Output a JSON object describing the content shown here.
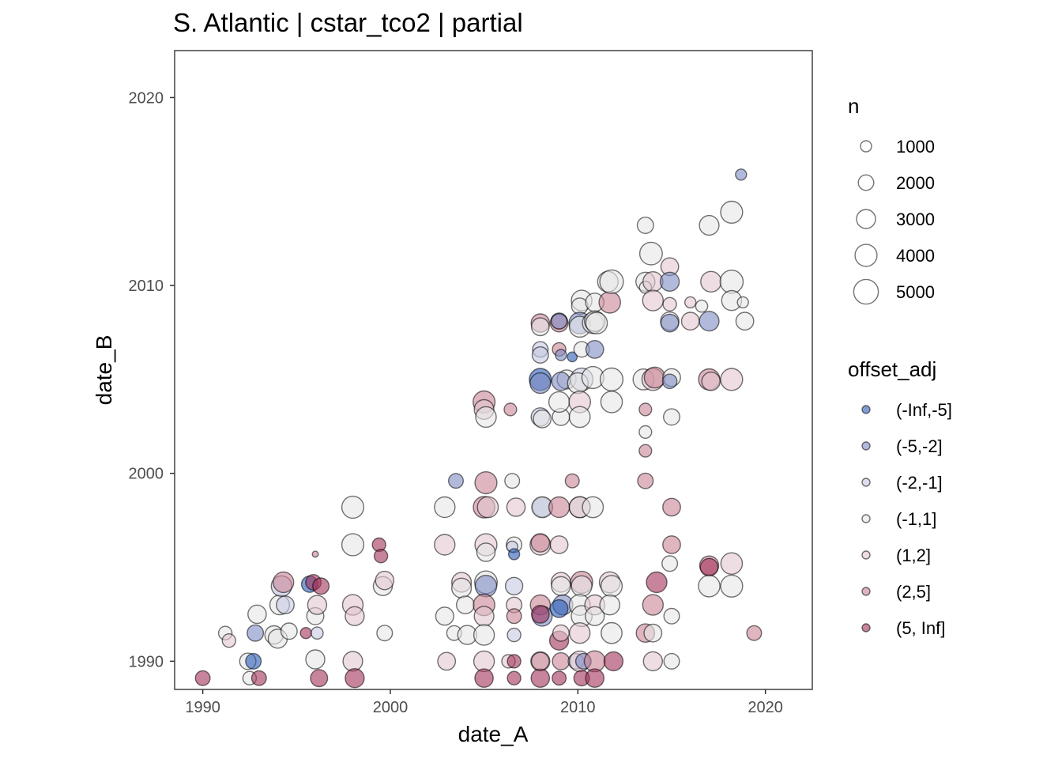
{
  "chart_data": {
    "type": "scatter",
    "title": "S. Atlantic | cstar_tco2 | partial",
    "xlabel": "date_A",
    "ylabel": "date_B",
    "xlim": [
      1988.5,
      2022.5
    ],
    "ylim": [
      1988.5,
      2022.5
    ],
    "x_ticks": [
      1990,
      2000,
      2010,
      2020
    ],
    "y_ticks": [
      1990,
      2000,
      2010,
      2020
    ],
    "size_legend": {
      "title": "n",
      "values": [
        1000,
        2000,
        3000,
        4000,
        5000
      ]
    },
    "color_legend": {
      "title": "offset_adj",
      "categories": [
        "(-Inf,-5]",
        "(-5,-2]",
        "(-2,-1]",
        "(-1,1]",
        "(1,2]",
        "(2,5]",
        "(5, Inf]"
      ],
      "colors": [
        "#2B5BB5",
        "#7F8CC5",
        "#C6C9E3",
        "#E6E6E6",
        "#E3C6CF",
        "#C98496",
        "#A2325A"
      ]
    },
    "points": [
      [
        1990.0,
        1989.1,
        1800,
        6
      ],
      [
        1991.2,
        1991.5,
        1500,
        3
      ],
      [
        1991.4,
        1991.1,
        1500,
        4
      ],
      [
        1992.4,
        1990.0,
        2200,
        3
      ],
      [
        1992.5,
        1989.1,
        1500,
        3
      ],
      [
        1992.7,
        1990.0,
        2000,
        0
      ],
      [
        1992.8,
        1991.5,
        2200,
        1
      ],
      [
        1992.9,
        1992.5,
        2800,
        3
      ],
      [
        1993.0,
        1989.1,
        1800,
        6
      ],
      [
        1993.8,
        1991.4,
        2800,
        3
      ],
      [
        1994.0,
        1991.2,
        3000,
        3
      ],
      [
        1994.1,
        1993.0,
        3200,
        3
      ],
      [
        1994.2,
        1994.0,
        3500,
        2
      ],
      [
        1994.3,
        1994.2,
        3500,
        5
      ],
      [
        1994.4,
        1993.0,
        2600,
        2
      ],
      [
        1994.6,
        1991.6,
        2200,
        3
      ],
      [
        1995.5,
        1991.5,
        1000,
        6
      ],
      [
        1995.7,
        1994.1,
        2200,
        0
      ],
      [
        1995.9,
        1994.2,
        2000,
        6
      ],
      [
        1996.0,
        1992.4,
        2400,
        3
      ],
      [
        1996.0,
        1990.1,
        3000,
        3
      ],
      [
        1996.1,
        1993.0,
        3000,
        4
      ],
      [
        1996.0,
        1995.7,
        300,
        5
      ],
      [
        1996.1,
        1991.5,
        1200,
        2
      ],
      [
        1996.2,
        1989.1,
        2400,
        6
      ],
      [
        1996.3,
        1994.0,
        2200,
        6
      ],
      [
        1998.0,
        1998.2,
        4000,
        3
      ],
      [
        1998.0,
        1996.2,
        4000,
        3
      ],
      [
        1998.0,
        1990.0,
        3200,
        4
      ],
      [
        1998.1,
        1989.1,
        3000,
        6
      ],
      [
        1998.0,
        1993.0,
        3500,
        4
      ],
      [
        1998.1,
        1992.4,
        3000,
        4
      ],
      [
        1999.4,
        1996.2,
        1500,
        6
      ],
      [
        1999.5,
        1995.6,
        1500,
        6
      ],
      [
        1999.6,
        1994.0,
        3000,
        3
      ],
      [
        1999.7,
        1994.3,
        2800,
        4
      ],
      [
        1999.7,
        1991.5,
        2000,
        3
      ],
      [
        2002.9,
        1998.2,
        3500,
        3
      ],
      [
        2002.9,
        1996.2,
        3500,
        4
      ],
      [
        2002.9,
        1992.4,
        2700,
        3
      ],
      [
        2003.0,
        1990.0,
        2600,
        4
      ],
      [
        2003.4,
        1991.5,
        1800,
        3
      ],
      [
        2003.5,
        1999.6,
        1800,
        1
      ],
      [
        2003.8,
        1994.2,
        3200,
        4
      ],
      [
        2003.8,
        1993.9,
        3200,
        3
      ],
      [
        2004.0,
        1993.0,
        2600,
        3
      ],
      [
        2004.1,
        1991.4,
        3000,
        3
      ],
      [
        2005.0,
        2003.8,
        4000,
        5
      ],
      [
        2005.0,
        2003.4,
        3200,
        4
      ],
      [
        2005.1,
        2003.0,
        3500,
        3
      ],
      [
        2005.1,
        1999.5,
        4000,
        5
      ],
      [
        2005.0,
        1998.2,
        3800,
        5
      ],
      [
        2005.1,
        1996.2,
        4000,
        4
      ],
      [
        2005.1,
        1994.2,
        4200,
        3
      ],
      [
        2005.1,
        1994.0,
        3800,
        1
      ],
      [
        2005.0,
        1993.0,
        3800,
        5
      ],
      [
        2005.0,
        1992.4,
        3200,
        4
      ],
      [
        2005.0,
        1991.4,
        3500,
        3
      ],
      [
        2005.0,
        1990.0,
        3500,
        4
      ],
      [
        2005.0,
        1989.1,
        2800,
        6
      ],
      [
        2005.2,
        1998.2,
        3600,
        4
      ],
      [
        2005.1,
        1995.8,
        2800,
        3
      ],
      [
        2006.4,
        2003.4,
        1300,
        5
      ],
      [
        2006.5,
        1999.6,
        1800,
        3
      ],
      [
        2006.7,
        1998.2,
        2800,
        4
      ],
      [
        2006.6,
        1996.2,
        2000,
        3
      ],
      [
        2006.5,
        1996.1,
        1000,
        2
      ],
      [
        2006.6,
        1995.7,
        1000,
        0
      ],
      [
        2006.6,
        1994.0,
        2500,
        2
      ],
      [
        2006.6,
        1993.0,
        2000,
        4
      ],
      [
        2006.6,
        1992.4,
        1800,
        5
      ],
      [
        2006.6,
        1991.4,
        1500,
        2
      ],
      [
        2006.3,
        1990.0,
        1500,
        4
      ],
      [
        2006.6,
        1990.0,
        1500,
        6
      ],
      [
        2006.6,
        1989.1,
        1500,
        6
      ],
      [
        2008.0,
        2008.0,
        2800,
        5
      ],
      [
        2008.0,
        2007.8,
        2600,
        3
      ],
      [
        2008.0,
        2006.6,
        2000,
        2
      ],
      [
        2008.0,
        2006.3,
        2200,
        2
      ],
      [
        2008.0,
        2005.0,
        4000,
        0
      ],
      [
        2008.0,
        2004.8,
        3500,
        1
      ],
      [
        2008.0,
        2003.0,
        2800,
        2
      ],
      [
        2008.1,
        2002.9,
        2600,
        3
      ],
      [
        2008.1,
        1998.2,
        3200,
        1
      ],
      [
        2008.1,
        1998.2,
        3600,
        3
      ],
      [
        2008.0,
        1996.2,
        3500,
        4
      ],
      [
        2008.0,
        1996.3,
        2800,
        5
      ],
      [
        2008.0,
        1993.0,
        3300,
        5
      ],
      [
        2008.1,
        1992.4,
        3300,
        1
      ],
      [
        2008.0,
        1992.5,
        2600,
        6
      ],
      [
        2008.0,
        1990.0,
        3000,
        3
      ],
      [
        2008.0,
        1989.1,
        2800,
        6
      ],
      [
        2008.0,
        1990.0,
        2600,
        5
      ],
      [
        2009.0,
        2008.1,
        2200,
        3
      ],
      [
        2009.0,
        2008.0,
        2600,
        5
      ],
      [
        2009.0,
        2008.1,
        2000,
        1
      ],
      [
        2009.0,
        2006.6,
        1500,
        5
      ],
      [
        2009.1,
        2006.3,
        1000,
        1
      ],
      [
        2009.4,
        2005.0,
        3000,
        3
      ],
      [
        2009.1,
        2004.9,
        2800,
        1
      ],
      [
        2009.1,
        2003.0,
        2400,
        3
      ],
      [
        2009.0,
        2003.8,
        3500,
        3
      ],
      [
        2009.0,
        1998.2,
        3500,
        5
      ],
      [
        2009.0,
        1996.2,
        2600,
        4
      ],
      [
        2009.1,
        1994.2,
        3200,
        4
      ],
      [
        2009.1,
        1994.0,
        3000,
        3
      ],
      [
        2009.2,
        1993.0,
        3300,
        1
      ],
      [
        2009.0,
        1992.8,
        2600,
        0
      ],
      [
        2009.0,
        1991.1,
        3000,
        6
      ],
      [
        2009.1,
        1990.0,
        2400,
        5
      ],
      [
        2009.0,
        1989.1,
        1600,
        6
      ],
      [
        2009.1,
        1991.5,
        2200,
        4
      ],
      [
        2009.7,
        2006.2,
        800,
        0
      ],
      [
        2009.7,
        1999.6,
        1600,
        5
      ],
      [
        2009.9,
        1990.0,
        2000,
        2
      ],
      [
        2010.2,
        2009.2,
        3500,
        3
      ],
      [
        2010.1,
        2008.9,
        2200,
        3
      ],
      [
        2010.1,
        2008.0,
        3800,
        1
      ],
      [
        2010.1,
        2007.8,
        3600,
        3
      ],
      [
        2010.2,
        2006.6,
        2000,
        3
      ],
      [
        2010.2,
        2005.0,
        4200,
        2
      ],
      [
        2010.0,
        2004.8,
        3500,
        3
      ],
      [
        2010.1,
        2003.8,
        3800,
        4
      ],
      [
        2010.1,
        2003.0,
        3600,
        3
      ],
      [
        2010.1,
        1998.2,
        3600,
        5
      ],
      [
        2010.1,
        1998.2,
        3600,
        3
      ],
      [
        2010.2,
        1994.2,
        4000,
        5
      ],
      [
        2010.2,
        1994.0,
        3500,
        3
      ],
      [
        2010.1,
        1993.0,
        3600,
        3
      ],
      [
        2010.2,
        1992.4,
        3600,
        3
      ],
      [
        2010.1,
        1991.5,
        3500,
        4
      ],
      [
        2010.1,
        1990.0,
        3500,
        4
      ],
      [
        2010.2,
        1989.1,
        2000,
        6
      ],
      [
        2010.3,
        1990.0,
        2000,
        1
      ],
      [
        2010.8,
        2008.0,
        3600,
        3
      ],
      [
        2010.9,
        2009.1,
        2800,
        3
      ],
      [
        2010.9,
        2006.6,
        2600,
        1
      ],
      [
        2010.8,
        2005.1,
        4000,
        3
      ],
      [
        2010.8,
        1998.2,
        3600,
        3
      ],
      [
        2010.9,
        1993.0,
        3300,
        4
      ],
      [
        2010.9,
        1992.4,
        3000,
        3
      ],
      [
        2010.9,
        1990.0,
        3600,
        5
      ],
      [
        2010.9,
        1989.1,
        2800,
        6
      ],
      [
        2010.9,
        2008.1,
        3500,
        3
      ],
      [
        2011.0,
        2008.0,
        3800,
        3
      ],
      [
        2011.6,
        2010.2,
        3500,
        3
      ],
      [
        2011.7,
        2009.1,
        3800,
        5
      ],
      [
        2011.8,
        2005.0,
        4300,
        3
      ],
      [
        2011.8,
        2003.8,
        3800,
        3
      ],
      [
        2011.7,
        1994.2,
        3600,
        4
      ],
      [
        2011.8,
        1994.0,
        3700,
        3
      ],
      [
        2011.7,
        1993.0,
        3300,
        3
      ],
      [
        2011.8,
        1991.5,
        3600,
        3
      ],
      [
        2011.9,
        1990.0,
        3000,
        6
      ],
      [
        2011.8,
        2010.2,
        4600,
        3
      ],
      [
        2013.6,
        2013.2,
        2200,
        3
      ],
      [
        2013.6,
        2010.2,
        3000,
        3
      ],
      [
        2013.6,
        2009.9,
        1200,
        3
      ],
      [
        2013.5,
        2005.0,
        3600,
        3
      ],
      [
        2013.6,
        2003.4,
        1300,
        5
      ],
      [
        2013.6,
        2002.2,
        1300,
        3
      ],
      [
        2013.6,
        2001.2,
        1300,
        5
      ],
      [
        2013.6,
        1999.6,
        2000,
        5
      ],
      [
        2013.6,
        1991.5,
        2800,
        5
      ],
      [
        2013.9,
        2011.7,
        4200,
        3
      ],
      [
        2014.0,
        2010.2,
        3300,
        4
      ],
      [
        2014.0,
        2009.2,
        3500,
        4
      ],
      [
        2014.0,
        2005.0,
        4000,
        4
      ],
      [
        2014.1,
        2005.1,
        3600,
        5
      ],
      [
        2014.2,
        1994.2,
        3500,
        6
      ],
      [
        2014.0,
        1993.0,
        3500,
        5
      ],
      [
        2014.0,
        1991.5,
        2600,
        3
      ],
      [
        2014.0,
        1990.0,
        3000,
        4
      ],
      [
        2014.9,
        2011.0,
        2600,
        4
      ],
      [
        2014.9,
        2010.2,
        3000,
        1
      ],
      [
        2014.9,
        2009.0,
        1500,
        4
      ],
      [
        2014.9,
        2008.1,
        2800,
        3
      ],
      [
        2014.9,
        2008.0,
        2600,
        1
      ],
      [
        2015.0,
        2005.1,
        2600,
        3
      ],
      [
        2014.9,
        2004.9,
        1700,
        1
      ],
      [
        2015.0,
        2003.0,
        2200,
        3
      ],
      [
        2015.0,
        1998.2,
        2600,
        5
      ],
      [
        2015.0,
        1996.2,
        2600,
        5
      ],
      [
        2014.9,
        1995.2,
        2000,
        3
      ],
      [
        2015.0,
        1992.4,
        2000,
        3
      ],
      [
        2015.0,
        1990.0,
        2000,
        3
      ],
      [
        2016.0,
        2009.1,
        1000,
        4
      ],
      [
        2016.0,
        2008.1,
        2600,
        4
      ],
      [
        2016.6,
        2008.9,
        1200,
        3
      ],
      [
        2017.0,
        2013.2,
        3200,
        3
      ],
      [
        2017.1,
        2010.2,
        3500,
        4
      ],
      [
        2017.0,
        2008.1,
        3200,
        1
      ],
      [
        2017.0,
        2005.0,
        3700,
        5
      ],
      [
        2017.1,
        2004.9,
        2800,
        4
      ],
      [
        2017.0,
        1995.1,
        3000,
        5
      ],
      [
        2017.0,
        1995.0,
        2600,
        6
      ],
      [
        2017.0,
        1994.0,
        3800,
        3
      ],
      [
        2018.2,
        2013.9,
        4000,
        3
      ],
      [
        2018.2,
        2010.2,
        4400,
        3
      ],
      [
        2018.2,
        2009.2,
        3300,
        3
      ],
      [
        2018.2,
        2005.0,
        4000,
        4
      ],
      [
        2018.2,
        1995.2,
        3800,
        4
      ],
      [
        2018.2,
        1994.0,
        4000,
        3
      ],
      [
        2018.7,
        2015.9,
        1000,
        1
      ],
      [
        2018.8,
        2009.1,
        1000,
        3
      ],
      [
        2018.9,
        2008.1,
        2600,
        3
      ],
      [
        2019.4,
        1991.5,
        1800,
        5
      ]
    ]
  }
}
